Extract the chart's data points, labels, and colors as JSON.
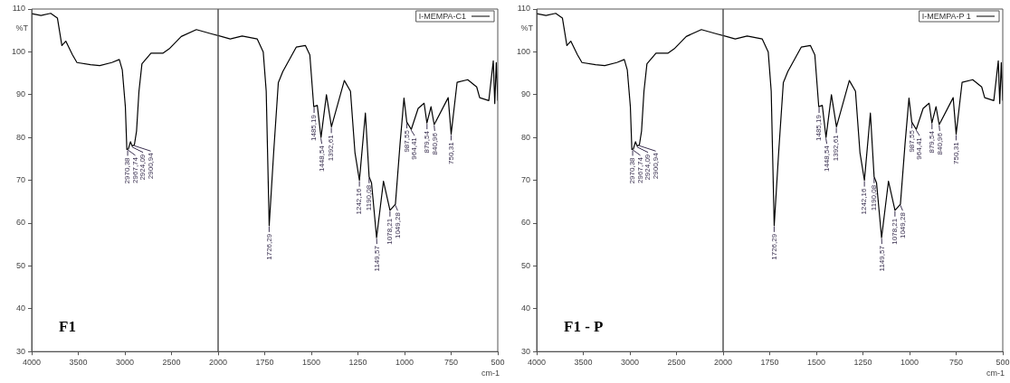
{
  "chart_data": [
    {
      "type": "line",
      "ylabel": "%T",
      "xlim": [
        4000,
        2000
      ],
      "ylim": [
        30,
        110
      ],
      "xticks": [
        4000,
        3500,
        3000,
        2500,
        {
          "value": 2000,
          "label": null
        }
      ],
      "yticks": [
        30,
        40,
        50,
        60,
        70,
        80,
        90,
        100,
        110
      ],
      "grid": false,
      "marker": "none",
      "line_style": "solid",
      "x": [
        4000,
        3900,
        3796,
        3724,
        3676,
        3634,
        3562,
        3514,
        3368,
        3270,
        3141,
        3060,
        3028,
        2995,
        2979,
        2963,
        2940,
        2921,
        2898,
        2875,
        2849,
        2817,
        2720,
        2590,
        2525,
        2395,
        2233,
        2070,
        2000
      ],
      "series": [
        {
          "color": "#000000",
          "values": [
            108.9,
            108.5,
            109,
            107.9,
            101.5,
            102.5,
            99.3,
            97.5,
            97,
            96.8,
            97.5,
            98.2,
            95.8,
            87.2,
            77.2,
            77.3,
            79,
            78,
            78.3,
            81.5,
            90.8,
            97.2,
            99.7,
            99.7,
            100.7,
            103.6,
            105.2,
            104.2,
            103.8
          ]
        }
      ],
      "annotations": [
        "F1",
        {
          "text": "2967,74",
          "x": 2967.74,
          "y": 77.3
        },
        {
          "text": "2970,38",
          "x": 2970.38,
          "y": 77.2
        },
        {
          "text": "2924,09",
          "x": 2924.09,
          "y": 78
        },
        {
          "text": "2900,94",
          "x": 2900.94,
          "y": 78.3
        }
      ]
    },
    {
      "type": "line",
      "xlabel": "cm-1",
      "xlim": [
        2000,
        500
      ],
      "ylim": [
        30,
        110
      ],
      "xticks": [
        2000,
        1750,
        1500,
        1250,
        1000,
        750,
        500
      ],
      "tick_labels": "x",
      "grid": false,
      "legend": "top right",
      "marker": "none",
      "line_style": "solid",
      "x": [
        2000,
        1935,
        1871,
        1790,
        1758,
        1742,
        1726,
        1702,
        1677,
        1653,
        1581,
        1532,
        1508,
        1487,
        1468,
        1448,
        1419,
        1392,
        1323,
        1290,
        1266,
        1242,
        1210,
        1190,
        1177,
        1150,
        1113,
        1078,
        1049,
        1024,
        1003,
        988,
        964,
        927,
        895,
        880,
        858,
        841,
        766,
        750,
        718,
        661,
        613,
        597,
        548,
        524,
        516,
        508,
        500
      ],
      "series": [
        {
          "name": "I-MEMPA-C1",
          "color": "#000000",
          "values": [
            103.8,
            103,
            103.7,
            103,
            100,
            90.8,
            59.4,
            76.5,
            92.8,
            95.4,
            101.1,
            101.5,
            99.3,
            87.2,
            87.5,
            80,
            90,
            82.5,
            93.3,
            90.8,
            76.5,
            70,
            85.7,
            70.8,
            69.4,
            56.6,
            69.8,
            63,
            64.4,
            78.6,
            89.2,
            83.6,
            81.9,
            86.8,
            88,
            83.4,
            87.2,
            83,
            89.3,
            80.8,
            92.9,
            93.5,
            91.8,
            89.3,
            88.6,
            97.9,
            87.9,
            97.5,
            88.6
          ]
        }
      ],
      "annotations": [
        {
          "text": "1726,29",
          "x": 1726.29,
          "y": 59.4
        },
        {
          "text": "1485,19",
          "x": 1485.19,
          "y": 87.2
        },
        {
          "text": "1448,54",
          "x": 1448.54,
          "y": 80
        },
        {
          "text": "1392,61",
          "x": 1392.61,
          "y": 82.5
        },
        {
          "text": "1242,16",
          "x": 1242.16,
          "y": 70
        },
        {
          "text": "1190,08",
          "x": 1190.08,
          "y": 70.8
        },
        {
          "text": "1149,57",
          "x": 1149.57,
          "y": 56.6
        },
        {
          "text": "1078,21",
          "x": 1078.21,
          "y": 63
        },
        {
          "text": "1049,28",
          "x": 1049.28,
          "y": 64.4
        },
        {
          "text": "987,55",
          "x": 987.55,
          "y": 83.6
        },
        {
          "text": "964,41",
          "x": 964.41,
          "y": 81.9
        },
        {
          "text": "879,54",
          "x": 879.54,
          "y": 83.4
        },
        {
          "text": "840,96",
          "x": 840.96,
          "y": 83
        },
        {
          "text": "750,31",
          "x": 750.31,
          "y": 80.8
        }
      ]
    },
    {
      "type": "line",
      "ylabel": "%T",
      "xlim": [
        4000,
        2000
      ],
      "ylim": [
        30,
        110
      ],
      "xticks": [
        4000,
        3500,
        3000,
        2500,
        {
          "value": 2000,
          "label": null
        }
      ],
      "yticks": [
        30,
        40,
        50,
        60,
        70,
        80,
        90,
        100,
        110
      ],
      "grid": false,
      "marker": "none",
      "line_style": "solid",
      "x": [
        4000,
        3900,
        3796,
        3724,
        3676,
        3634,
        3562,
        3514,
        3368,
        3270,
        3141,
        3060,
        3028,
        2995,
        2979,
        2963,
        2940,
        2921,
        2898,
        2875,
        2849,
        2817,
        2720,
        2590,
        2525,
        2395,
        2233,
        2070,
        2000
      ],
      "series": [
        {
          "color": "#000000",
          "values": [
            108.9,
            108.5,
            109,
            107.9,
            101.5,
            102.5,
            99.3,
            97.5,
            97,
            96.8,
            97.5,
            98.2,
            95.8,
            87.2,
            77.2,
            77.3,
            79,
            78,
            78.3,
            81.5,
            90.8,
            97.2,
            99.7,
            99.7,
            100.7,
            103.6,
            105.2,
            104.2,
            103.8
          ]
        }
      ],
      "annotations": [
        "F1 - P",
        {
          "text": "2967,74",
          "x": 2967.74,
          "y": 77.3
        },
        {
          "text": "2970,38",
          "x": 2970.38,
          "y": 77.2
        },
        {
          "text": "2924,09",
          "x": 2924.09,
          "y": 78
        },
        {
          "text": "2900,94",
          "x": 2900.94,
          "y": 78.3
        }
      ]
    },
    {
      "type": "line",
      "xlabel": "cm-1",
      "xlim": [
        2000,
        500
      ],
      "ylim": [
        30,
        110
      ],
      "xticks": [
        2000,
        1750,
        1500,
        1250,
        1000,
        750,
        500
      ],
      "tick_labels": "x",
      "grid": false,
      "legend": "top right",
      "marker": "none",
      "line_style": "solid",
      "x": [
        2000,
        1935,
        1871,
        1790,
        1758,
        1742,
        1726,
        1702,
        1677,
        1653,
        1581,
        1532,
        1508,
        1487,
        1468,
        1448,
        1419,
        1392,
        1323,
        1290,
        1266,
        1242,
        1210,
        1190,
        1177,
        1150,
        1113,
        1078,
        1049,
        1024,
        1003,
        988,
        964,
        927,
        895,
        880,
        858,
        841,
        766,
        750,
        718,
        661,
        613,
        597,
        548,
        524,
        516,
        508,
        500
      ],
      "series": [
        {
          "name": "I-MEMPA-P 1",
          "color": "#000000",
          "values": [
            103.8,
            103,
            103.7,
            103,
            100,
            90.8,
            59.4,
            76.5,
            92.8,
            95.4,
            101.1,
            101.5,
            99.3,
            87.2,
            87.5,
            80,
            90,
            82.5,
            93.3,
            90.8,
            76.5,
            70,
            85.7,
            70.8,
            69.4,
            56.6,
            69.8,
            63,
            64.4,
            78.6,
            89.2,
            83.6,
            81.9,
            86.8,
            88,
            83.4,
            87.2,
            83,
            89.3,
            80.8,
            92.9,
            93.5,
            91.8,
            89.3,
            88.6,
            97.9,
            87.9,
            97.5,
            88.6
          ]
        }
      ],
      "annotations": [
        {
          "text": "1726,29",
          "x": 1726.29,
          "y": 59.4
        },
        {
          "text": "1485,19",
          "x": 1485.19,
          "y": 87.2
        },
        {
          "text": "1448,54",
          "x": 1448.54,
          "y": 80
        },
        {
          "text": "1392,61",
          "x": 1392.61,
          "y": 82.5
        },
        {
          "text": "1242,16",
          "x": 1242.16,
          "y": 70
        },
        {
          "text": "1190,08",
          "x": 1190.08,
          "y": 70.8
        },
        {
          "text": "1149,57",
          "x": 1149.57,
          "y": 56.6
        },
        {
          "text": "1078,21",
          "x": 1078.21,
          "y": 63
        },
        {
          "text": "1049,28",
          "x": 1049.28,
          "y": 64.4
        },
        {
          "text": "987,55",
          "x": 987.55,
          "y": 83.6
        },
        {
          "text": "964,41",
          "x": 964.41,
          "y": 81.9
        },
        {
          "text": "879,54",
          "x": 879.54,
          "y": 83.4
        },
        {
          "text": "840,96",
          "x": 840.96,
          "y": 83
        },
        {
          "text": "750,31",
          "x": 750.31,
          "y": 80.8
        }
      ]
    }
  ]
}
